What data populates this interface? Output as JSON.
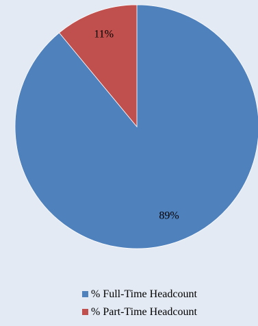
{
  "chart_data": {
    "type": "pie",
    "categories": [
      "% Full-Time Headcount",
      "% Part-Time Headcount"
    ],
    "values": [
      89,
      11
    ],
    "labels": [
      "89%",
      "11%"
    ],
    "colors": [
      "#4f81bd",
      "#c0504d"
    ],
    "legend_position": "bottom",
    "start_angle": "top",
    "direction": "clockwise"
  }
}
